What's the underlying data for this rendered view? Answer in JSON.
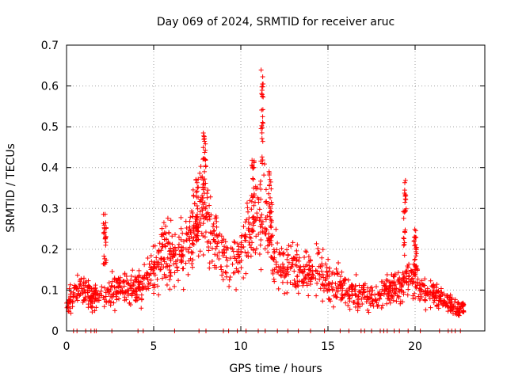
{
  "chart_data": {
    "type": "scatter",
    "title": "Day 069 of 2024, SRMTID for receiver aruc",
    "xlabel": "GPS time / hours",
    "ylabel": "SRMTID / TECUs",
    "xlim": [
      0,
      24
    ],
    "ylim": [
      0,
      0.7
    ],
    "xticks": [
      0,
      5,
      10,
      15,
      20
    ],
    "xtick_labels": [
      "0",
      "5",
      "10",
      "15",
      "20"
    ],
    "yticks": [
      0,
      0.1,
      0.2,
      0.3,
      0.4,
      0.5,
      0.6,
      0.7
    ],
    "ytick_labels": [
      "0",
      "0.1",
      "0.2",
      "0.3",
      "0.4",
      "0.5",
      "0.6",
      "0.7"
    ],
    "grid": true,
    "marker": "+",
    "color": "#ff0000",
    "series": [
      {
        "name": "SRMTID",
        "profile": {
          "x": [
            0.0,
            0.5,
            1.0,
            1.5,
            2.0,
            2.5,
            3.0,
            3.5,
            4.0,
            4.5,
            5.0,
            5.5,
            6.0,
            6.5,
            7.0,
            7.5,
            8.0,
            8.5,
            9.0,
            9.5,
            10.0,
            10.5,
            11.0,
            11.5,
            12.0,
            12.5,
            13.0,
            13.5,
            14.0,
            14.5,
            15.0,
            15.5,
            16.0,
            16.5,
            17.0,
            17.5,
            18.0,
            18.5,
            19.0,
            19.5,
            20.0,
            20.5,
            21.0,
            21.5,
            22.0,
            22.5,
            22.8
          ],
          "y": [
            0.07,
            0.09,
            0.1,
            0.08,
            0.09,
            0.1,
            0.11,
            0.1,
            0.1,
            0.12,
            0.15,
            0.2,
            0.19,
            0.17,
            0.23,
            0.28,
            0.3,
            0.22,
            0.19,
            0.17,
            0.18,
            0.24,
            0.28,
            0.26,
            0.17,
            0.15,
            0.16,
            0.14,
            0.14,
            0.16,
            0.12,
            0.11,
            0.1,
            0.09,
            0.09,
            0.08,
            0.09,
            0.1,
            0.11,
            0.13,
            0.12,
            0.1,
            0.09,
            0.08,
            0.07,
            0.05,
            0.06
          ]
        },
        "peaks": [
          {
            "x": 2.2,
            "y": 0.29
          },
          {
            "x": 7.5,
            "y": 0.4
          },
          {
            "x": 7.9,
            "y": 0.49
          },
          {
            "x": 10.7,
            "y": 0.42
          },
          {
            "x": 11.2,
            "y": 0.64
          },
          {
            "x": 11.7,
            "y": 0.4
          },
          {
            "x": 19.4,
            "y": 0.37
          },
          {
            "x": 20.0,
            "y": 0.25
          }
        ],
        "zero_points_x": [
          0.4,
          0.6,
          1.1,
          1.4,
          1.6,
          1.7,
          2.6,
          4.1,
          4.4,
          6.2,
          7.6,
          8.0,
          9.0,
          9.3,
          9.8,
          10.3,
          11.0,
          11.4,
          12.1,
          12.7,
          13.3,
          14.0,
          14.8,
          15.7,
          16.2,
          16.9,
          17.1,
          17.5,
          18.0,
          18.2,
          18.4,
          18.8,
          19.1,
          19.6,
          20.3,
          21.4,
          21.9,
          22.1,
          22.3,
          22.6
        ]
      }
    ]
  }
}
